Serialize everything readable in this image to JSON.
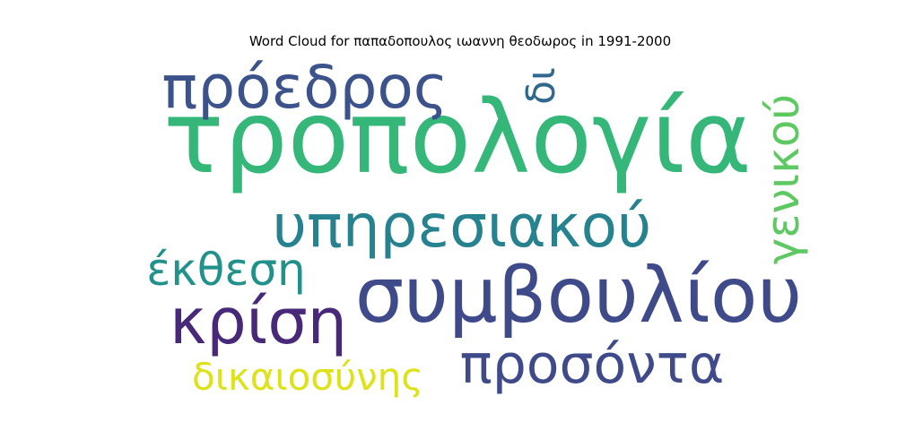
{
  "title": "Word Cloud for παπαδοπουλος ιωαννη θεοδωρος in 1991-2000",
  "chart_data": {
    "type": "wordcloud",
    "title": "Word Cloud for παπαδοπουλος ιωαννη θεοδωρος in 1991-2000",
    "words": [
      {
        "text": "τροπολογία",
        "color": "#35b779"
      },
      {
        "text": "συμβουλίου",
        "color": "#3e4a89"
      },
      {
        "text": "υπηρεσιακού",
        "color": "#26828e"
      },
      {
        "text": "πρόεδρος",
        "color": "#3b528b"
      },
      {
        "text": "κρίση",
        "color": "#482878"
      },
      {
        "text": "προσόντα",
        "color": "#3e4a89"
      },
      {
        "text": "γενικού",
        "color": "#5ec962"
      },
      {
        "text": "έκθεση",
        "color": "#21918c"
      },
      {
        "text": "δικαιοσύνης",
        "color": "#dde318"
      },
      {
        "text": "δι",
        "color": "#31688e"
      }
    ]
  }
}
